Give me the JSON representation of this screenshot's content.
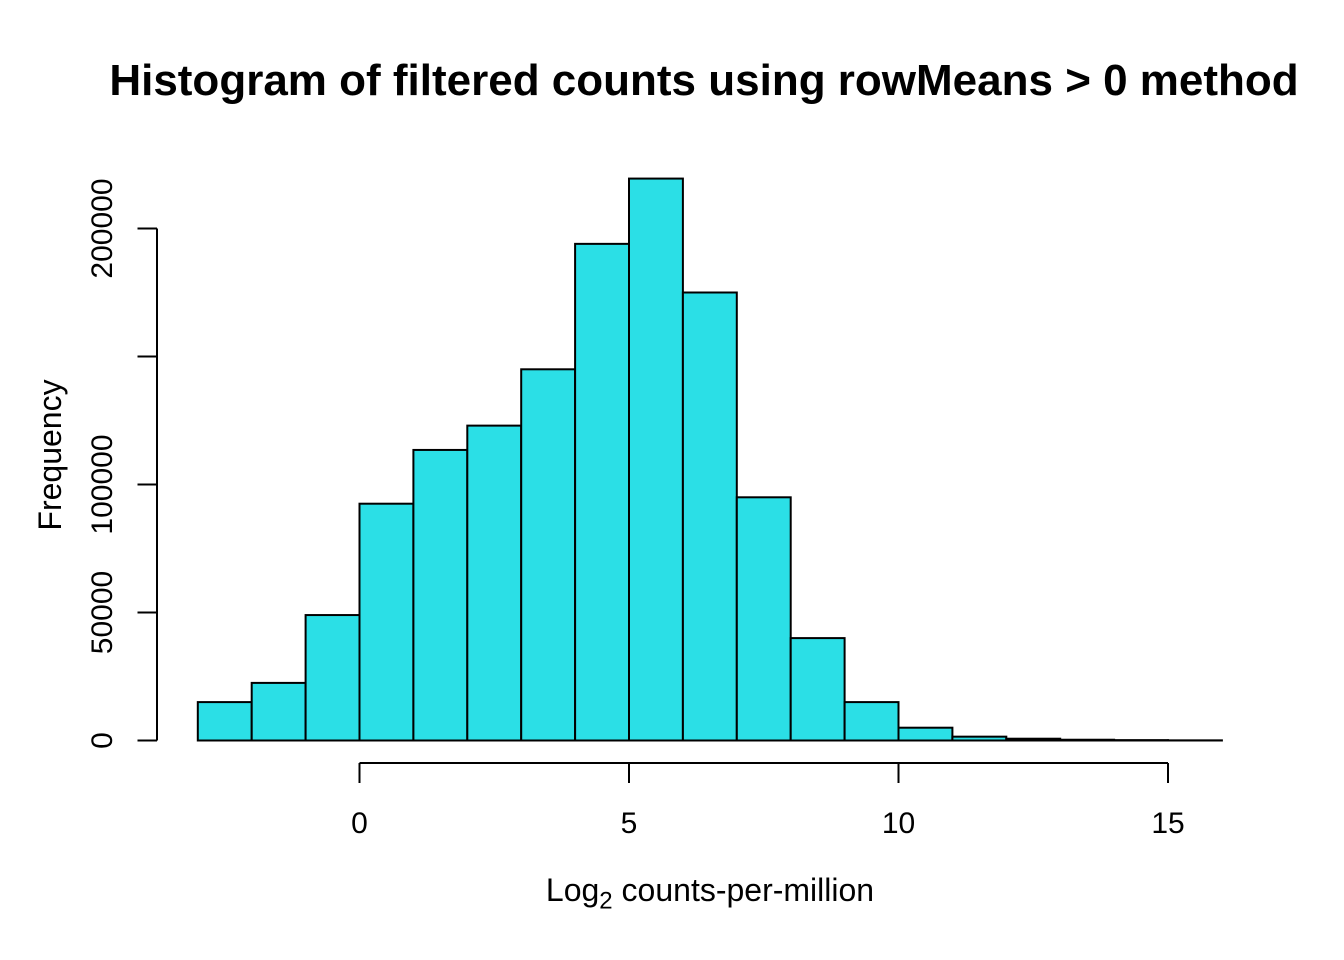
{
  "chart_data": {
    "type": "bar",
    "subtype": "histogram",
    "title": "Histogram of filtered counts using rowMeans > 0 method",
    "xlabel": "Log2 counts-per-million",
    "xlabel_parts": {
      "main": "Log",
      "sub": "2",
      "rest": " counts-per-million"
    },
    "ylabel": "Frequency",
    "bin_edges": [
      -3,
      -2,
      -1,
      0,
      1,
      2,
      3,
      4,
      5,
      6,
      7,
      8,
      9,
      10,
      11,
      12,
      13,
      14,
      15,
      16
    ],
    "counts": [
      15000,
      22500,
      49000,
      92500,
      113500,
      123000,
      145000,
      194000,
      219500,
      175000,
      95000,
      40000,
      15000,
      5000,
      1500,
      700,
      300,
      150,
      60
    ],
    "x_ticks": [
      {
        "value": 0,
        "label": "0"
      },
      {
        "value": 5,
        "label": "5"
      },
      {
        "value": 10,
        "label": "10"
      },
      {
        "value": 15,
        "label": "15"
      }
    ],
    "y_ticks": [
      {
        "value": 0,
        "label": "0"
      },
      {
        "value": 50000,
        "label": "50000"
      },
      {
        "value": 100000,
        "label": "100000"
      },
      {
        "value": 150000,
        "label": ""
      },
      {
        "value": 200000,
        "label": "200000"
      }
    ],
    "xlim": [
      -3,
      16
    ],
    "ylim": [
      0,
      200000
    ],
    "grid": "off",
    "legend": "none",
    "colors": {
      "bar_fill": "#2BDFE6",
      "bar_stroke": "#000000",
      "axis": "#000000",
      "text": "#000000"
    }
  }
}
